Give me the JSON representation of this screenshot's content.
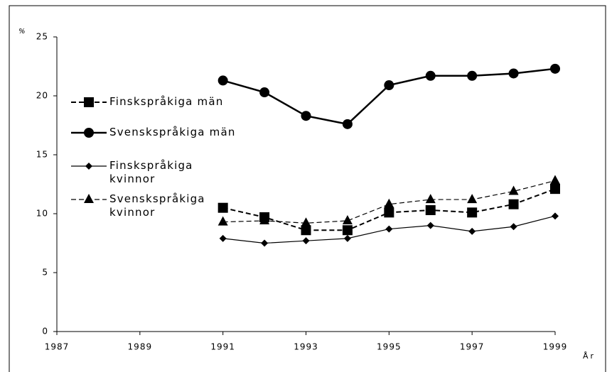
{
  "chart_data": {
    "type": "line",
    "ylabel": "%",
    "xlabel": "År",
    "x": [
      1991,
      1992,
      1993,
      1994,
      1995,
      1996,
      1997,
      1998,
      1999
    ],
    "series": [
      {
        "name": "Finskspråkiga män",
        "color": "#000000",
        "marker": "square",
        "dash": true,
        "width": 2,
        "values": [
          10.5,
          9.7,
          8.6,
          8.6,
          10.1,
          10.3,
          10.1,
          10.8,
          12.1
        ]
      },
      {
        "name": "Svenskspråkiga män",
        "color": "#000000",
        "marker": "circle",
        "dash": false,
        "width": 2.5,
        "values": [
          21.3,
          20.3,
          18.3,
          17.6,
          20.9,
          21.7,
          21.7,
          21.9,
          22.3
        ]
      },
      {
        "name": "Finskspråkiga kvinnor",
        "color": "#000000",
        "marker": "diamond",
        "dash": false,
        "width": 1.2,
        "values": [
          7.9,
          7.5,
          7.7,
          7.9,
          8.7,
          9.0,
          8.5,
          8.9,
          9.8
        ]
      },
      {
        "name": "Svenskspråkiga kvinnor",
        "color": "#000000",
        "marker": "triangle",
        "dash": true,
        "width": 1.2,
        "values": [
          9.3,
          9.4,
          9.2,
          9.4,
          10.8,
          11.2,
          11.2,
          11.9,
          12.8
        ]
      }
    ],
    "xlim": [
      1987,
      1999
    ],
    "xticks": [
      1987,
      1989,
      1991,
      1993,
      1995,
      1997,
      1999
    ],
    "ylim": [
      0,
      25
    ],
    "yticks": [
      0,
      5,
      10,
      15,
      20,
      25
    ]
  }
}
